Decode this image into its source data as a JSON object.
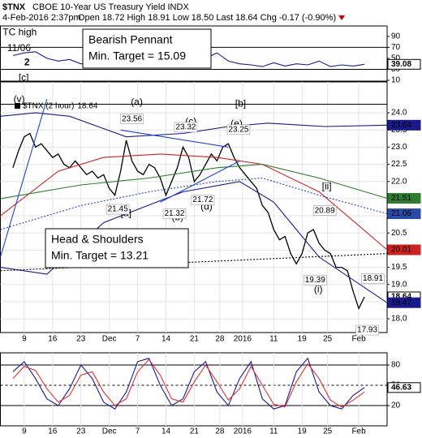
{
  "chart_data": [
    {
      "type": "line",
      "title": "$TNX",
      "subtitle": "CBOE 10-Year US Treasury Yield INDX",
      "date": "4-Feb-2016 2:37pm",
      "quote": [
        {
          "label": "Open",
          "value": 18.72
        },
        {
          "label": "High",
          "value": 18.91
        },
        {
          "label": "Low",
          "value": 18.5,
          "value_label": "18.50"
        },
        {
          "label": "Last",
          "value": 18.64
        },
        {
          "label": "Chg",
          "value": -0.17,
          "pct_label": "(-0.90%)"
        }
      ],
      "xlim": [
        -2.2,
        66
      ],
      "xticks": [
        {
          "value": 2,
          "label": "9"
        },
        {
          "value": 7,
          "label": "16"
        },
        {
          "value": 12,
          "label": "23"
        },
        {
          "value": 17,
          "label": "Dec"
        },
        {
          "value": 22,
          "label": "7"
        },
        {
          "value": 27,
          "label": "14"
        },
        {
          "value": 32,
          "label": "21"
        },
        {
          "value": 36.5,
          "label": "28"
        },
        {
          "value": 40.5,
          "label": "2016"
        },
        {
          "value": 46,
          "label": "11"
        },
        {
          "value": 51,
          "label": "19"
        },
        {
          "value": 55.5,
          "label": "25"
        },
        {
          "value": 61,
          "label": "Feb"
        }
      ],
      "ylim": [
        17.6,
        24.9
      ],
      "yticks": [
        {
          "value": 18,
          "label": "18.0"
        },
        18.5,
        {
          "value": 19,
          "label": "19.0"
        },
        19.5,
        {
          "value": 20,
          "label": "20.0"
        },
        20.5,
        {
          "value": 21,
          "label": "21.0"
        },
        21.5,
        {
          "value": 22,
          "label": "22.0"
        },
        22.5,
        {
          "value": 23,
          "label": "23.0"
        },
        23.5,
        {
          "value": 24,
          "label": "24.0"
        }
      ],
      "grid": true,
      "x": [
        0,
        1,
        2,
        3,
        4,
        5,
        6,
        7,
        8,
        9,
        10,
        11,
        12,
        13,
        14,
        15,
        16,
        17,
        18,
        19,
        20,
        21,
        22,
        23,
        24,
        25,
        26,
        27,
        28,
        29,
        30,
        31,
        32,
        33,
        34,
        35,
        36,
        37,
        38,
        39,
        40,
        41,
        42,
        43,
        44,
        45,
        46,
        47,
        48,
        49,
        50,
        51,
        52,
        53,
        54,
        55,
        56,
        57,
        58,
        59,
        60,
        61,
        62
      ],
      "series": [
        {
          "name": "$TNX (2 hour)",
          "color": "#000000",
          "tag": true,
          "values": [
            22.4,
            22.9,
            23.3,
            23.4,
            23.0,
            23.1,
            22.9,
            22.7,
            22.8,
            22.5,
            22.4,
            22.6,
            22.4,
            22.2,
            22.3,
            22.1,
            22.2,
            21.8,
            21.6,
            22.3,
            23.2,
            22.6,
            22.3,
            22.2,
            22.5,
            22.4,
            22.1,
            21.6,
            22.0,
            22.4,
            23.0,
            22.7,
            22.0,
            22.2,
            22.5,
            22.8,
            22.6,
            23.0,
            23.1,
            22.7,
            22.4,
            22.2,
            22.0,
            21.8,
            21.3,
            21.1,
            20.6,
            20.3,
            20.4,
            19.9,
            19.6,
            19.9,
            20.5,
            20.6,
            20.2,
            20.0,
            19.9,
            19.5,
            19.5,
            19.4,
            18.8,
            18.3,
            18.64
          ]
        },
        {
          "color": "#1a1a8c",
          "tag": true,
          "x": [
            -2.2,
            4,
            10,
            20,
            30,
            38,
            45,
            55,
            66
          ],
          "values": [
            23.9,
            24.0,
            23.9,
            23.3,
            23.4,
            23.6,
            23.7,
            23.6,
            23.64
          ]
        },
        {
          "color": "#cc2222",
          "tag": true,
          "x": [
            -2.2,
            8,
            16,
            26,
            36,
            44,
            54,
            66
          ],
          "values": [
            21.0,
            22.3,
            22.7,
            22.8,
            22.7,
            22.5,
            21.7,
            20.01
          ]
        },
        {
          "color": "#2e7d2e",
          "tag": true,
          "x": [
            -2.2,
            12,
            24,
            36,
            44,
            54,
            66
          ],
          "values": [
            21.5,
            21.9,
            22.1,
            22.4,
            22.5,
            22.1,
            21.51
          ]
        },
        {
          "color": "#2a4aa8",
          "dash": true,
          "tag": true,
          "x": [
            -2.2,
            12,
            24,
            36,
            44,
            54,
            66
          ],
          "values": [
            20.6,
            21.3,
            21.7,
            22.0,
            22.1,
            21.6,
            21.06
          ]
        },
        {
          "color": "#1a1a8c",
          "tag": true,
          "x": [
            -2.2,
            6,
            16,
            30,
            40,
            46,
            54,
            66
          ],
          "values": [
            19.5,
            19.3,
            20.8,
            21.7,
            22.0,
            21.4,
            19.8,
            18.47
          ]
        },
        {
          "color": "#000000",
          "dash": true,
          "x": [
            -2.2,
            66
          ],
          "values": [
            19.4,
            19.9
          ]
        },
        {
          "color": "#000000",
          "x": [
            -2.2,
            66
          ],
          "values": [
            24.25,
            24.25
          ]
        },
        {
          "color": "#2244cc",
          "x": [
            19,
            38
          ],
          "values": [
            23.5,
            23.0
          ]
        },
        {
          "color": "#2244cc",
          "x": [
            26,
            40
          ],
          "values": [
            21.4,
            22.6
          ]
        },
        {
          "color": "#2244cc",
          "x": [
            -2.2,
            6
          ],
          "values": [
            19.8,
            24.4
          ]
        }
      ],
      "price_labels": [
        {
          "x": 21,
          "value": 23.56,
          "pos": "above"
        },
        {
          "x": 30.5,
          "value": 23.32,
          "pos": "above"
        },
        {
          "x": 39.8,
          "value": 23.25,
          "pos": "above"
        },
        {
          "x": 18.5,
          "value": 21.45,
          "pos": "below"
        },
        {
          "x": 28.5,
          "value": 21.32,
          "pos": "below"
        },
        {
          "x": 33.5,
          "value": 21.72,
          "pos": "below"
        },
        {
          "x": 55,
          "value": 20.89,
          "pos": "above"
        },
        {
          "x": 53.3,
          "value": 19.39,
          "pos": "below"
        },
        {
          "x": 63.5,
          "value": 18.91,
          "pos": "above"
        },
        {
          "x": 62.5,
          "value": 17.93,
          "pos": "below"
        }
      ],
      "waves": [
        {
          "text": "(v)",
          "color": "#2e8b2e",
          "x": 0.1,
          "y": 24.38
        },
        {
          "text": "(a)",
          "color": "#2e8b2e",
          "x": 20.8,
          "y": 24.3
        },
        {
          "text": "[b]",
          "color": "#cc0000",
          "x": 39.2,
          "y": 24.26
        },
        {
          "text": "(c)",
          "color": "#2e8b2e",
          "x": 30.4,
          "y": 23.73
        },
        {
          "text": "(e)",
          "color": "#2e8b2e",
          "x": 38.4,
          "y": 23.67
        },
        {
          "text": "[a]",
          "color": "#cc0000",
          "x": 19,
          "y": 21.07
        },
        {
          "text": "(b)",
          "color": "#2e8b2e",
          "x": 28,
          "y": 20.95
        },
        {
          "text": "(d)",
          "color": "#2e8b2e",
          "x": 33.1,
          "y": 21.25
        },
        {
          "text": "[ii]",
          "color": "#2e8b2e",
          "x": 54.5,
          "y": 21.84
        },
        {
          "text": "(i)",
          "color": "#2e8b2e",
          "x": 53.1,
          "y": 18.85
        }
      ],
      "boxes": [
        [
          "Bearish Pennant",
          "Min. Target = 15.09"
        ],
        [
          "Head & Shoulders",
          "Min. Target = 13.21"
        ]
      ]
    },
    {
      "type": "line",
      "xlim": [
        -2.2,
        66
      ],
      "ylim": [
        8.5,
        109
      ],
      "yticks": [
        10,
        30,
        50,
        70,
        90
      ],
      "hlines": [
        30,
        70
      ],
      "x": [
        0,
        2,
        4,
        6,
        8,
        10,
        12,
        14,
        16,
        18,
        20,
        22,
        24,
        26,
        28,
        30,
        32,
        34,
        36,
        38,
        40,
        42,
        44,
        46,
        48,
        50,
        52,
        54,
        56,
        58,
        60,
        62
      ],
      "series": [
        {
          "color": "#1a1a8c",
          "tag": true,
          "values": [
            55,
            60,
            62,
            50,
            45,
            48,
            40,
            42,
            38,
            50,
            60,
            45,
            40,
            48,
            38,
            42,
            55,
            50,
            60,
            45,
            40,
            38,
            35,
            42,
            36,
            40,
            38,
            45,
            35,
            38,
            36,
            39.08
          ]
        }
      ],
      "waves": [
        {
          "text": "TC high",
          "color": "#000000",
          "x": -1.8,
          "y": 97
        },
        {
          "text": "11/06",
          "color": "#000000",
          "x": -1.0,
          "y": 68
        },
        {
          "text": "2",
          "color": "#8a2be2",
          "x": 2.0,
          "y": 42
        },
        {
          "text": "[c]",
          "color": "#cc0000",
          "x": 1.0,
          "y": 14
        }
      ]
    },
    {
      "type": "line",
      "xlim": [
        -2.2,
        66
      ],
      "ylim": [
        -10,
        98
      ],
      "yticks": [
        20,
        50,
        80
      ],
      "grid": true,
      "xticks": [
        {
          "value": 2,
          "label": "9"
        },
        {
          "value": 7,
          "label": "16"
        },
        {
          "value": 12,
          "label": "23"
        },
        {
          "value": 17,
          "label": "Dec"
        },
        {
          "value": 22,
          "label": "7"
        },
        {
          "value": 27,
          "label": "14"
        },
        {
          "value": 32,
          "label": "21"
        },
        {
          "value": 36.5,
          "label": "28"
        },
        {
          "value": 40.5,
          "label": "2016"
        },
        {
          "value": 46,
          "label": "11"
        },
        {
          "value": 51,
          "label": "19"
        },
        {
          "value": 55.5,
          "label": "25"
        },
        {
          "value": 61,
          "label": "Feb"
        }
      ],
      "x": [
        0,
        2,
        4,
        6,
        8,
        10,
        12,
        14,
        16,
        18,
        20,
        22,
        24,
        26,
        28,
        30,
        32,
        34,
        36,
        38,
        40,
        42,
        44,
        46,
        48,
        50,
        52,
        54,
        56,
        58,
        60,
        62
      ],
      "series": [
        {
          "color": "#1a1a8c",
          "tag": true,
          "values": [
            70,
            85,
            60,
            30,
            20,
            45,
            80,
            60,
            25,
            15,
            40,
            85,
            90,
            50,
            20,
            30,
            70,
            85,
            40,
            20,
            60,
            85,
            30,
            15,
            20,
            70,
            90,
            40,
            20,
            15,
            35,
            46.63
          ]
        },
        {
          "color": "#dd3333",
          "values": [
            60,
            78,
            72,
            45,
            25,
            35,
            65,
            70,
            40,
            20,
            30,
            70,
            88,
            65,
            30,
            25,
            55,
            80,
            55,
            28,
            45,
            78,
            50,
            22,
            18,
            55,
            82,
            60,
            28,
            18,
            28,
            40
          ]
        }
      ]
    }
  ]
}
